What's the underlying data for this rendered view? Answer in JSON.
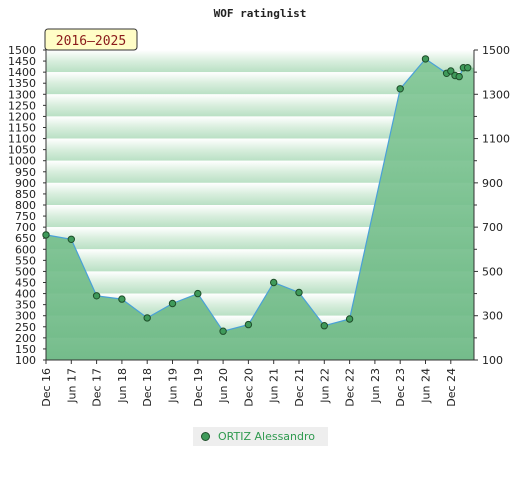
{
  "chart_data": {
    "type": "area",
    "title": "WOF ratinglist",
    "badge": "2016–2025",
    "left_axis": {
      "ylim": [
        100,
        1500
      ],
      "ticks": [
        100,
        150,
        200,
        250,
        300,
        350,
        400,
        450,
        500,
        550,
        600,
        650,
        700,
        750,
        800,
        850,
        900,
        950,
        1000,
        1050,
        1100,
        1150,
        1200,
        1250,
        1300,
        1350,
        1400,
        1450,
        1500
      ]
    },
    "right_axis": {
      "ylim": [
        100,
        1500
      ],
      "ticks": [
        100,
        300,
        500,
        700,
        900,
        1100,
        1300,
        1500
      ]
    },
    "x_ticks": [
      "Dec 16",
      "Jun 17",
      "Dec 17",
      "Jun 18",
      "Dec 18",
      "Jun 19",
      "Dec 19",
      "Jun 20",
      "Dec 20",
      "Jun 21",
      "Dec 21",
      "Jun 22",
      "Dec 22",
      "Jun 23",
      "Dec 23",
      "Jun 24",
      "Dec 24"
    ],
    "grid": false,
    "legend_position": "bottom",
    "series": [
      {
        "name": "ORTIZ Alessandro",
        "color": "#3f9a5a",
        "points": [
          {
            "x": "Dec 16",
            "y": 665
          },
          {
            "x": "Jun 17",
            "y": 645
          },
          {
            "x": "Dec 17",
            "y": 390
          },
          {
            "x": "Jun 18",
            "y": 375
          },
          {
            "x": "Dec 18",
            "y": 290
          },
          {
            "x": "Jun 19",
            "y": 355
          },
          {
            "x": "Dec 19",
            "y": 400
          },
          {
            "x": "Jun 20",
            "y": 230
          },
          {
            "x": "Dec 20",
            "y": 260
          },
          {
            "x": "Jun 21",
            "y": 450
          },
          {
            "x": "Dec 21",
            "y": 405
          },
          {
            "x": "Jun 22",
            "y": 255
          },
          {
            "x": "Dec 22",
            "y": 285
          },
          {
            "x": "Dec 23",
            "y": 1325
          },
          {
            "x": "Jun 24",
            "y": 1460
          },
          {
            "x": "Nov 24",
            "y": 1395
          },
          {
            "x": "Dec 24",
            "y": 1405
          },
          {
            "x": "Jan 25",
            "y": 1385
          },
          {
            "x": "Feb 25",
            "y": 1380
          },
          {
            "x": "Mar 25",
            "y": 1420
          },
          {
            "x": "Apr 25",
            "y": 1420
          }
        ]
      }
    ]
  }
}
